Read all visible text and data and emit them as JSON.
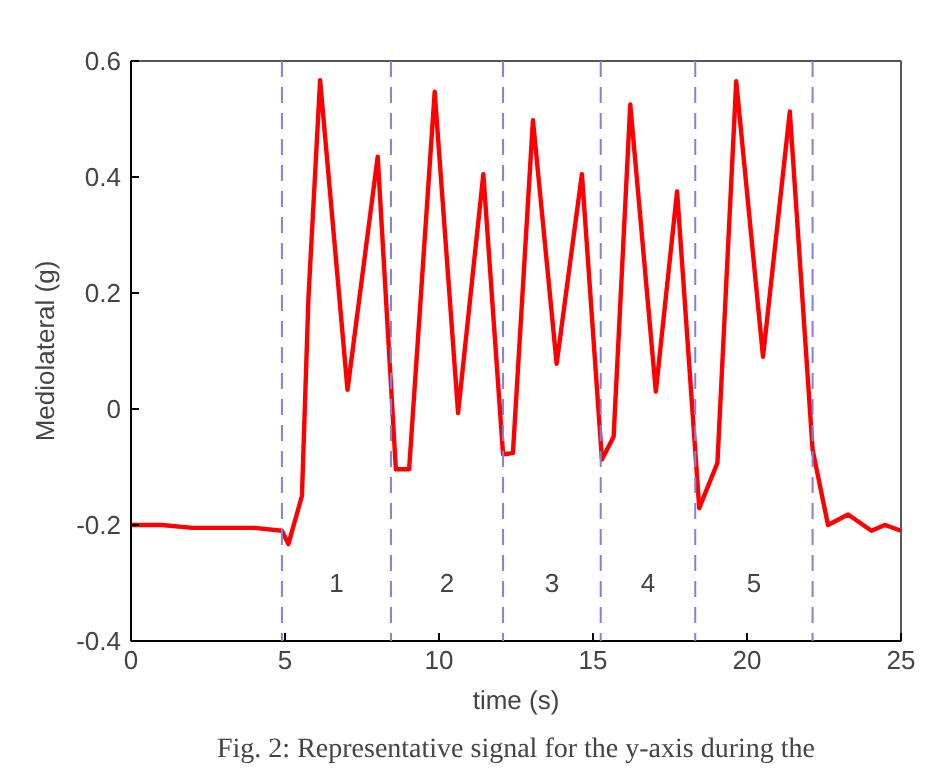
{
  "chart_data": {
    "type": "line",
    "xlabel": "time (s)",
    "ylabel": "Mediolateral (g)",
    "x": [
      0,
      1,
      2,
      3,
      4,
      4.9,
      5.11,
      5.55,
      5.76,
      6.14,
      7.03,
      8.01,
      8.6,
      9.03,
      9.86,
      10.62,
      11.44,
      12.08,
      12.4,
      13.05,
      13.82,
      14.64,
      15.29,
      15.67,
      16.21,
      17.04,
      17.73,
      18.45,
      19.04,
      19.65,
      20.52,
      21.39,
      22.13,
      22.63,
      23.28,
      24.04,
      24.48,
      25
    ],
    "series": [
      {
        "color": "#ff0000",
        "values": [
          -0.2,
          -0.2,
          -0.205,
          -0.205,
          -0.205,
          -0.21,
          -0.233,
          -0.15,
          0.19,
          0.567,
          0.033,
          0.435,
          -0.104,
          -0.104,
          0.547,
          -0.007,
          0.405,
          -0.078,
          -0.076,
          0.498,
          0.078,
          0.405,
          -0.087,
          -0.048,
          0.525,
          0.03,
          0.375,
          -0.171,
          -0.093,
          0.565,
          0.09,
          0.513,
          -0.07,
          -0.2,
          -0.182,
          -0.21,
          -0.2,
          -0.21
        ]
      }
    ],
    "xlim": [
      0,
      25
    ],
    "xticks": [
      0,
      5,
      10,
      15,
      20,
      25
    ],
    "ylim": [
      -0.4,
      0.6
    ],
    "yticks": [
      -0.4,
      -0.2,
      0,
      0.2,
      0.4,
      0.6
    ],
    "grid": false,
    "marker": "none",
    "line_style": "solid",
    "ref_lines": [
      {
        "axis": "x",
        "value": 4.9,
        "color": "#8080e0",
        "line_style": "dashed"
      },
      {
        "axis": "x",
        "value": 8.44,
        "color": "#8080e0",
        "line_style": "dashed"
      },
      {
        "axis": "x",
        "value": 12.08,
        "color": "#8080e0",
        "line_style": "dashed"
      },
      {
        "axis": "x",
        "value": 15.25,
        "color": "#8080e0",
        "line_style": "dashed"
      },
      {
        "axis": "x",
        "value": 18.32,
        "color": "#8080e0",
        "line_style": "dashed"
      },
      {
        "axis": "x",
        "value": 22.13,
        "color": "#8080e0",
        "line_style": "dashed"
      }
    ],
    "annotations": [
      "1",
      "2",
      "3",
      "4",
      "5",
      "Fig. 2: Representative signal for the y-axis during the"
    ]
  }
}
